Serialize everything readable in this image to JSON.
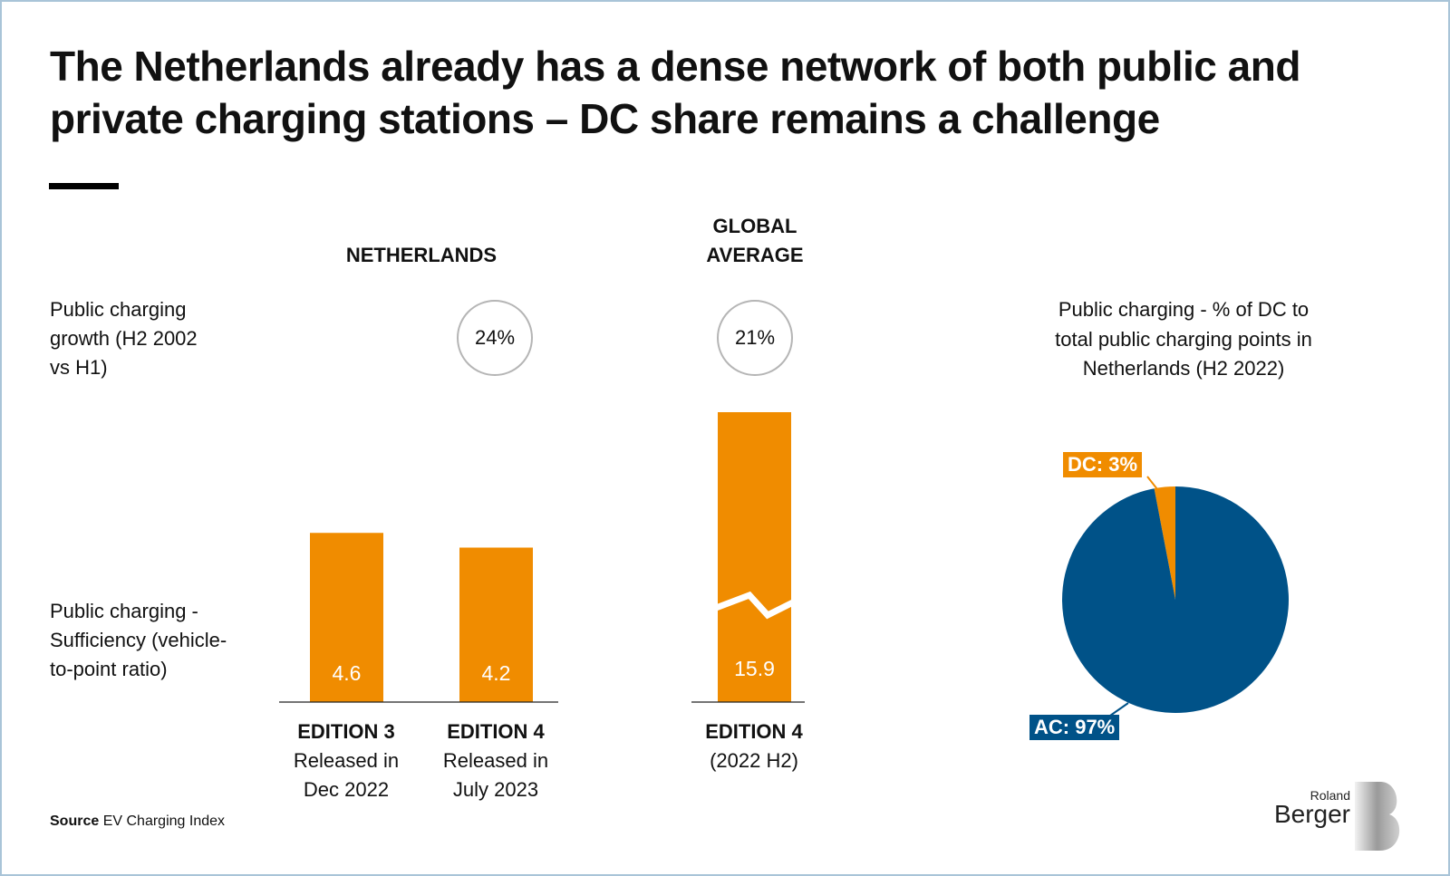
{
  "title": "The Netherlands already has a dense network of both public and private charging stations – DC share remains a challenge",
  "row_labels": {
    "growth": "Public charging growth (H2 2002 vs H1)",
    "sufficiency": "Public charging - Sufficiency (vehicle-to-point ratio)"
  },
  "group_headers": {
    "netherlands": "NETHERLANDS",
    "global": "GLOBAL AVERAGE"
  },
  "colors": {
    "bar": "#f08c00",
    "pie_ac": "#005288",
    "pie_dc": "#f08c00",
    "circle": "#b5b5b5"
  },
  "chart_data": [
    {
      "type": "bar",
      "categories": [
        "EDITION 3",
        "EDITION 4",
        "EDITION 4"
      ],
      "category_sublabels": [
        "Released in Dec 2022",
        "Released in July 2023",
        "(2022 H2)"
      ],
      "groups": [
        "NETHERLANDS",
        "NETHERLANDS",
        "GLOBAL AVERAGE"
      ],
      "values": [
        4.6,
        4.2,
        15.9
      ],
      "data_labels": [
        "4.6",
        "4.2",
        "15.9"
      ],
      "axis_break": [
        false,
        false,
        true
      ],
      "growth": [
        "24%",
        "21%"
      ]
    },
    {
      "type": "pie",
      "title": "Public charging - % of DC to total public charging points in Netherlands (H2 2022)",
      "slices": [
        {
          "label": "DC",
          "value": 3,
          "text": "DC: 3%"
        },
        {
          "label": "AC",
          "value": 97,
          "text": "AC: 97%"
        }
      ]
    }
  ],
  "source": {
    "label": "Source",
    "text": "EV Charging Index"
  },
  "logo": {
    "line1": "Roland",
    "line2": "Berger"
  }
}
